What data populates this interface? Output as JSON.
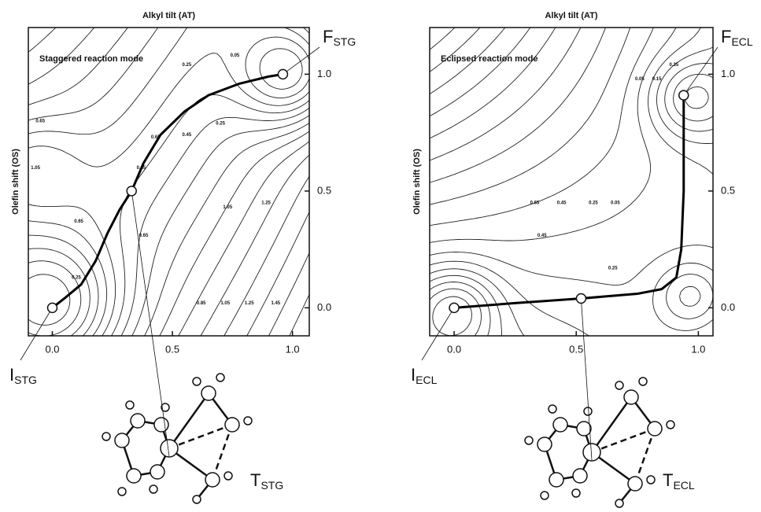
{
  "chart_data": [
    {
      "type": "contour",
      "title": "Alkyl tilt (AT)",
      "y_label": "Olefin shift (OS)",
      "annotation": "Staggered reaction mode",
      "xlim": [
        -0.1,
        1.07
      ],
      "ylim": [
        -0.12,
        1.2
      ],
      "xticks": [
        {
          "value": 0,
          "label": "0.0"
        },
        {
          "value": 0.5,
          "label": "0.5"
        },
        {
          "value": 1,
          "label": "1.0"
        }
      ],
      "yticks": [
        {
          "value": 0,
          "label": "0.0"
        },
        {
          "value": 0.5,
          "label": "0.5"
        },
        {
          "value": 1,
          "label": "1.0"
        }
      ],
      "path": {
        "color": "#000000",
        "x": [
          0,
          0.05,
          0.12,
          0.18,
          0.23,
          0.28,
          0.33,
          0.38,
          0.45,
          0.55,
          0.65,
          0.78,
          0.9,
          0.96
        ],
        "y": [
          0,
          0.04,
          0.1,
          0.2,
          0.32,
          0.42,
          0.5,
          0.62,
          0.74,
          0.84,
          0.91,
          0.96,
          0.99,
          1.0
        ]
      },
      "points": [
        {
          "name": "I",
          "sub": "STG",
          "x": 0,
          "y": 0
        },
        {
          "name": "T",
          "sub": "STG",
          "x": 0.33,
          "y": 0.5
        },
        {
          "name": "F",
          "sub": "STG",
          "x": 0.96,
          "y": 1.0
        }
      ],
      "contour_labels": [
        {
          "x": 0.56,
          "y": 1.04,
          "value": 0.25
        },
        {
          "x": 0.76,
          "y": 1.08,
          "value": 0.05
        },
        {
          "x": -0.05,
          "y": 0.8,
          "value": 0.65
        },
        {
          "x": -0.07,
          "y": 0.6,
          "value": 1.05
        },
        {
          "x": 0.7,
          "y": 0.79,
          "value": 0.25
        },
        {
          "x": 0.56,
          "y": 0.74,
          "value": 0.45
        },
        {
          "x": 0.43,
          "y": 0.73,
          "value": 0.65
        },
        {
          "x": 0.1,
          "y": 0.13,
          "value": 0.25
        },
        {
          "x": 0.11,
          "y": 0.37,
          "value": 0.65
        },
        {
          "x": 0.38,
          "y": 0.31,
          "value": 0.65
        },
        {
          "x": 0.37,
          "y": 0.6,
          "value": 0.85
        },
        {
          "x": 0.73,
          "y": 0.43,
          "value": 1.05
        },
        {
          "x": 0.89,
          "y": 0.45,
          "value": 1.25
        },
        {
          "x": 0.62,
          "y": 0.02,
          "value": 0.85
        },
        {
          "x": 0.72,
          "y": 0.02,
          "value": 1.05
        },
        {
          "x": 0.82,
          "y": 0.02,
          "value": 1.25
        },
        {
          "x": 0.93,
          "y": 0.02,
          "value": 1.45
        }
      ]
    },
    {
      "type": "contour",
      "title": "Alkyl tilt (AT)",
      "y_label": "Olefin shift (OS)",
      "annotation": "Eclipsed reaction mode",
      "xlim": [
        -0.1,
        1.06
      ],
      "ylim": [
        -0.12,
        1.2
      ],
      "xticks": [
        {
          "value": 0,
          "label": "0.0"
        },
        {
          "value": 0.5,
          "label": "0.5"
        },
        {
          "value": 1,
          "label": "1.0"
        }
      ],
      "yticks": [
        {
          "value": 0,
          "label": "0.0"
        },
        {
          "value": 0.5,
          "label": "0.5"
        },
        {
          "value": 1,
          "label": "1.0"
        }
      ],
      "path": {
        "color": "#000000",
        "x": [
          0,
          0.25,
          0.52,
          0.75,
          0.85,
          0.91,
          0.93,
          0.94,
          0.94
        ],
        "y": [
          0,
          0.02,
          0.04,
          0.06,
          0.08,
          0.13,
          0.25,
          0.5,
          0.91
        ]
      },
      "points": [
        {
          "name": "I",
          "sub": "ECL",
          "x": 0,
          "y": 0
        },
        {
          "name": "T",
          "sub": "ECL",
          "x": 0.52,
          "y": 0.04
        },
        {
          "name": "F",
          "sub": "ECL",
          "x": 0.94,
          "y": 0.91
        }
      ],
      "contour_labels": [
        {
          "x": 0.76,
          "y": 0.98,
          "value": 0.05
        },
        {
          "x": 0.83,
          "y": 0.98,
          "value": 0.15
        },
        {
          "x": 0.9,
          "y": 1.04,
          "value": 0.35
        },
        {
          "x": 0.33,
          "y": 0.45,
          "value": 0.65
        },
        {
          "x": 0.44,
          "y": 0.45,
          "value": 0.45
        },
        {
          "x": 0.57,
          "y": 0.45,
          "value": 0.25
        },
        {
          "x": 0.66,
          "y": 0.45,
          "value": 0.05
        },
        {
          "x": 0.36,
          "y": 0.31,
          "value": 0.45
        },
        {
          "x": 0.65,
          "y": 0.17,
          "value": 0.25
        }
      ]
    }
  ]
}
